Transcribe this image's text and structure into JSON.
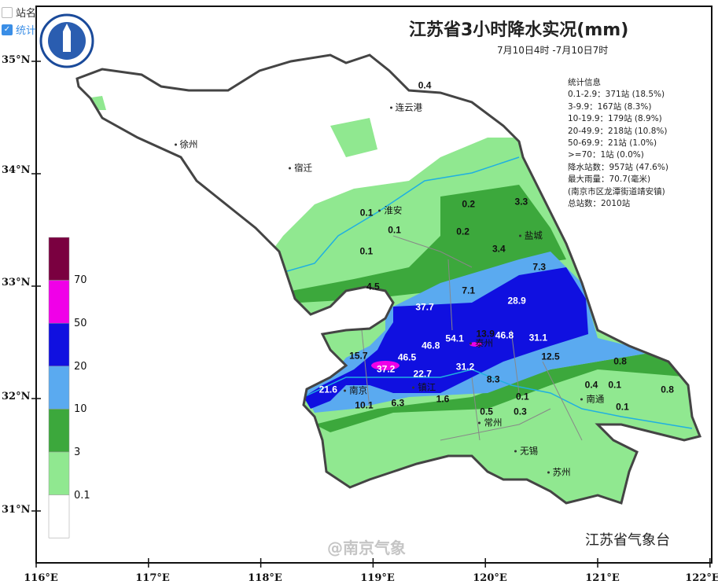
{
  "controls": {
    "station_name_label": "站名",
    "station_name_checked": false,
    "stats_label": "统计",
    "stats_checked": true
  },
  "header": {
    "title": "江苏省3小时降水实况(mm)",
    "time_range": "7月10日4时 -7月10日7时"
  },
  "stats": {
    "heading": "统计信息",
    "lines": [
      "0.1-2.9：371站 (18.5%)",
      "3-9.9：167站 (8.3%)",
      "10-19.9：179站 (8.9%)",
      "20-49.9：218站 (10.8%)",
      "50-69.9：21站 (1.0%)",
      ">=70：1站 (0.0%)",
      "降水站数：957站 (47.6%)",
      "最大雨量：70.7(毫米)",
      "(南京市区龙潭街道靖安镇)",
      "总站数：2010站"
    ]
  },
  "legend": {
    "labels": [
      "70",
      "50",
      "20",
      "10",
      "3",
      "0.1"
    ],
    "colors": [
      "#7a0040",
      "#f000e8",
      "#1010e0",
      "#5aaaf0",
      "#3ca83c",
      "#90e890",
      "#ffffff"
    ]
  },
  "axes": {
    "lat_labels": [
      "35°N",
      "34°N",
      "33°N",
      "32°N",
      "31°N"
    ],
    "lon_labels": [
      "116°E",
      "117°E",
      "118°E",
      "119°E",
      "120°E",
      "121°E",
      "122°E"
    ]
  },
  "cities": [
    {
      "name": "连云港",
      "lon": 119.17,
      "lat": 34.59
    },
    {
      "name": "徐州",
      "lon": 117.25,
      "lat": 34.26
    },
    {
      "name": "宿迁",
      "lon": 118.27,
      "lat": 34.05
    },
    {
      "name": "淮安",
      "lon": 119.07,
      "lat": 33.67
    },
    {
      "name": "盐城",
      "lon": 120.32,
      "lat": 33.45
    },
    {
      "name": "泰州",
      "lon": 119.88,
      "lat": 32.49
    },
    {
      "name": "镇江",
      "lon": 119.37,
      "lat": 32.1
    },
    {
      "name": "南京",
      "lon": 118.76,
      "lat": 32.07
    },
    {
      "name": "常州",
      "lon": 119.96,
      "lat": 31.78
    },
    {
      "name": "无锡",
      "lon": 120.28,
      "lat": 31.53
    },
    {
      "name": "苏州",
      "lon": 120.57,
      "lat": 31.34
    },
    {
      "name": "南通",
      "lon": 120.87,
      "lat": 31.99
    }
  ],
  "rainfall": [
    {
      "v": "0.4",
      "lon": 119.46,
      "lat": 34.78
    },
    {
      "v": "0.2",
      "lon": 119.85,
      "lat": 33.73
    },
    {
      "v": "3.3",
      "lon": 120.32,
      "lat": 33.75
    },
    {
      "v": "0.1",
      "lon": 118.97,
      "lat": 33.65
    },
    {
      "v": "0.1",
      "lon": 119.19,
      "lat": 33.5
    },
    {
      "v": "0.2",
      "lon": 119.8,
      "lat": 33.48
    },
    {
      "v": "0.1",
      "lon": 118.94,
      "lat": 33.31
    },
    {
      "v": "3.4",
      "lon": 120.12,
      "lat": 33.33
    },
    {
      "v": "7.3",
      "lon": 120.48,
      "lat": 33.17
    },
    {
      "v": "4.5",
      "lon": 119.0,
      "lat": 32.99
    },
    {
      "v": "7.1",
      "lon": 119.85,
      "lat": 32.96
    },
    {
      "v": "28.9",
      "lon": 120.28,
      "lat": 32.87
    },
    {
      "v": "37.7",
      "lon": 119.46,
      "lat": 32.81
    },
    {
      "v": "13.9",
      "lon": 120.0,
      "lat": 32.57
    },
    {
      "v": "54.1",
      "lon": 119.6,
      "lat": 32.47
    },
    {
      "v": "46.8",
      "lon": 119.5,
      "lat": 32.43
    },
    {
      "v": "46.8",
      "lon": 120.17,
      "lat": 32.53
    },
    {
      "v": "31.1",
      "lon": 120.47,
      "lat": 32.54
    },
    {
      "v": "15.7",
      "lon": 118.87,
      "lat": 32.38
    },
    {
      "v": "46.5",
      "lon": 119.33,
      "lat": 32.36
    },
    {
      "v": "12.5",
      "lon": 120.58,
      "lat": 32.37
    },
    {
      "v": "37.2",
      "lon": 119.17,
      "lat": 32.31
    },
    {
      "v": "31.2",
      "lon": 119.82,
      "lat": 32.28
    },
    {
      "v": "0.8",
      "lon": 121.2,
      "lat": 32.33
    },
    {
      "v": "22.7",
      "lon": 119.44,
      "lat": 32.19
    },
    {
      "v": "8.3",
      "lon": 120.07,
      "lat": 32.17
    },
    {
      "v": "0.4",
      "lon": 121.0,
      "lat": 32.1
    },
    {
      "v": "0.1",
      "lon": 121.11,
      "lat": 32.12
    },
    {
      "v": "0.8",
      "lon": 121.62,
      "lat": 32.08
    },
    {
      "v": "21.6",
      "lon": 118.6,
      "lat": 32.08
    },
    {
      "v": "10.1",
      "lon": 118.92,
      "lat": 31.94
    },
    {
      "v": "6.3",
      "lon": 119.22,
      "lat": 31.96
    },
    {
      "v": "1.6",
      "lon": 119.62,
      "lat": 31.99
    },
    {
      "v": "0.1",
      "lon": 120.33,
      "lat": 31.99
    },
    {
      "v": "0.5",
      "lon": 120.01,
      "lat": 31.88
    },
    {
      "v": "0.3",
      "lon": 120.31,
      "lat": 31.9
    },
    {
      "v": "0.1",
      "lon": 121.22,
      "lat": 31.92
    }
  ],
  "footer": {
    "agency": "江苏省气象台",
    "watermark": "@南京气象"
  }
}
